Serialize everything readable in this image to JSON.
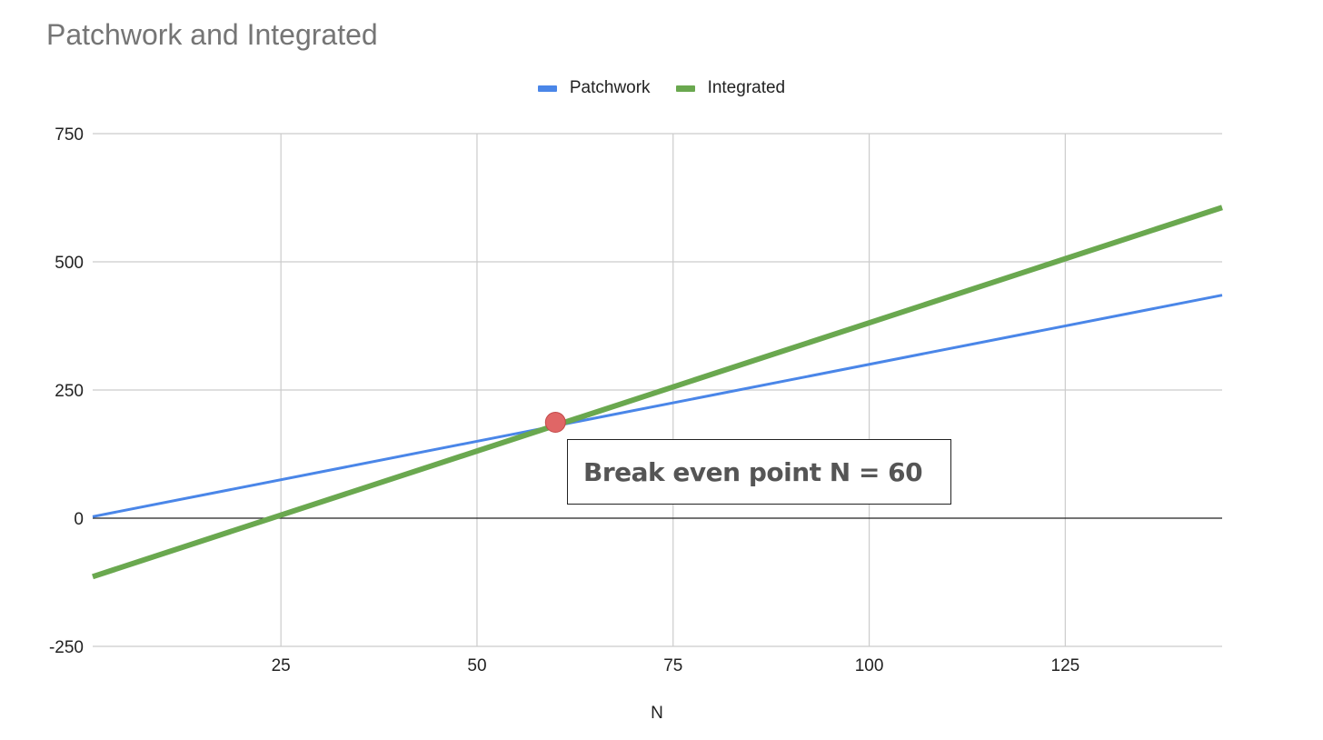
{
  "chart_data": {
    "type": "line",
    "title": "Patchwork and Integrated",
    "xlabel": "N",
    "ylabel": "",
    "xlim": [
      1,
      145
    ],
    "ylim": [
      -250,
      750
    ],
    "x_ticks": [
      25,
      50,
      75,
      100,
      125
    ],
    "y_ticks": [
      -250,
      0,
      250,
      500,
      750
    ],
    "grid": true,
    "legend_position": "top-center",
    "series": [
      {
        "name": "Patchwork",
        "color": "#4a86e8",
        "x": [
          1,
          145
        ],
        "y": [
          3,
          435
        ]
      },
      {
        "name": "Integrated",
        "color": "#6aa84f",
        "x": [
          1,
          145
        ],
        "y": [
          -114,
          606
        ]
      }
    ],
    "annotations": [
      {
        "text": "Break even point N = 60",
        "point": {
          "x": 60,
          "y": 187
        },
        "marker_color": "#e06666"
      }
    ]
  }
}
